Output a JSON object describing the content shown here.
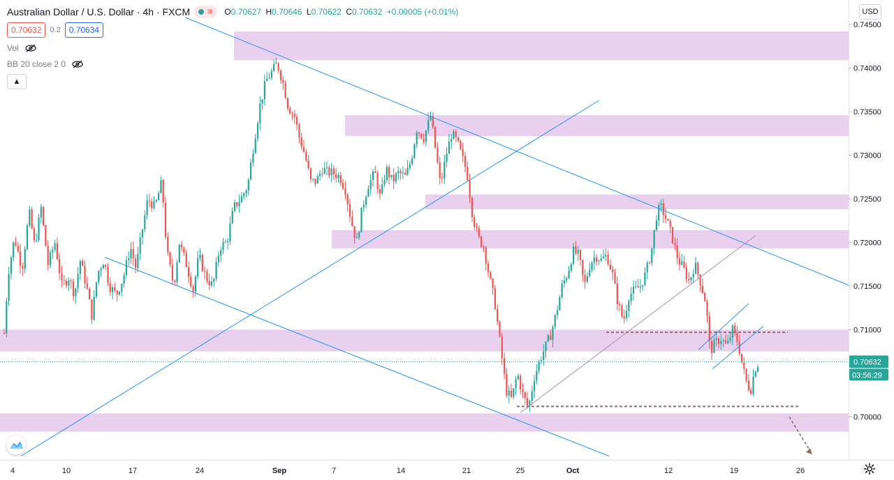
{
  "header": {
    "symbol_title": "Australian Dollar / U.S. Dollar · 4h · FXCM",
    "ohlc": {
      "open_label": "O",
      "open": "0.70627",
      "high_label": "H",
      "high": "0.70646",
      "low_label": "L",
      "low": "0.70622",
      "close_label": "C",
      "close": "0.70632",
      "change": "+0.00005 (+0.01%)"
    },
    "sell_price": "0.70632",
    "spread": "0.2",
    "buy_price": "0.70634",
    "indicators": [
      {
        "label": "Vol"
      },
      {
        "label": "BB 20 close 2 0"
      }
    ],
    "currency": "USD",
    "status_icon": "market-open-dot",
    "collapse_icon": "chevron-up-icon"
  },
  "colors": {
    "up": "#26a69a",
    "down": "#ef5350",
    "zone": "#e6c8ec",
    "trendline": "#2196f3",
    "level_dashed": "#8d6e63",
    "current_price": "#26a69a"
  },
  "chart_data": {
    "type": "candlestick",
    "timeframe": "4h",
    "y_axis": {
      "position": "right",
      "ylim": [
        0.6955,
        0.7465
      ],
      "ticks": [
        "0.74500",
        "0.74000",
        "0.73500",
        "0.73000",
        "0.72500",
        "0.72000",
        "0.71500",
        "0.71000",
        "0.70000"
      ]
    },
    "x_axis": {
      "ticks": [
        "4",
        "10",
        "17",
        "24",
        "Sep",
        "7",
        "14",
        "21",
        "25",
        "Oct",
        "12",
        "19",
        "26"
      ]
    },
    "current_price": "0.70632",
    "countdown": "03:56:29",
    "price_path": [
      [
        0,
        0.7145
      ],
      [
        8,
        0.708
      ],
      [
        15,
        0.7165
      ],
      [
        24,
        0.7205
      ],
      [
        35,
        0.717
      ],
      [
        45,
        0.7235
      ],
      [
        53,
        0.7195
      ],
      [
        62,
        0.724
      ],
      [
        72,
        0.7175
      ],
      [
        82,
        0.72
      ],
      [
        92,
        0.715
      ],
      [
        102,
        0.716
      ],
      [
        110,
        0.714
      ],
      [
        118,
        0.718
      ],
      [
        127,
        0.715
      ],
      [
        135,
        0.7115
      ],
      [
        143,
        0.7165
      ],
      [
        152,
        0.718
      ],
      [
        160,
        0.715
      ],
      [
        170,
        0.714
      ],
      [
        180,
        0.716
      ],
      [
        190,
        0.7195
      ],
      [
        198,
        0.717
      ],
      [
        206,
        0.721
      ],
      [
        215,
        0.725
      ],
      [
        225,
        0.724
      ],
      [
        235,
        0.727
      ],
      [
        242,
        0.719
      ],
      [
        252,
        0.715
      ],
      [
        260,
        0.72
      ],
      [
        270,
        0.7175
      ],
      [
        280,
        0.7145
      ],
      [
        288,
        0.7185
      ],
      [
        298,
        0.716
      ],
      [
        308,
        0.715
      ],
      [
        318,
        0.7195
      ],
      [
        328,
        0.72
      ],
      [
        338,
        0.724
      ],
      [
        348,
        0.725
      ],
      [
        358,
        0.7265
      ],
      [
        366,
        0.731
      ],
      [
        375,
        0.7355
      ],
      [
        384,
        0.7385
      ],
      [
        392,
        0.7395
      ],
      [
        400,
        0.7405
      ],
      [
        408,
        0.7385
      ],
      [
        416,
        0.7355
      ],
      [
        425,
        0.7345
      ],
      [
        432,
        0.732
      ],
      [
        440,
        0.73
      ],
      [
        448,
        0.727
      ],
      [
        456,
        0.727
      ],
      [
        465,
        0.7285
      ],
      [
        472,
        0.728
      ],
      [
        480,
        0.728
      ],
      [
        490,
        0.7275
      ],
      [
        498,
        0.726
      ],
      [
        506,
        0.7225
      ],
      [
        514,
        0.72
      ],
      [
        522,
        0.724
      ],
      [
        530,
        0.7265
      ],
      [
        540,
        0.728
      ],
      [
        548,
        0.725
      ],
      [
        556,
        0.7285
      ],
      [
        565,
        0.727
      ],
      [
        574,
        0.728
      ],
      [
        584,
        0.7275
      ],
      [
        592,
        0.7295
      ],
      [
        600,
        0.733
      ],
      [
        610,
        0.732
      ],
      [
        620,
        0.7345
      ],
      [
        628,
        0.73
      ],
      [
        634,
        0.7265
      ],
      [
        642,
        0.73
      ],
      [
        650,
        0.7325
      ],
      [
        658,
        0.7315
      ],
      [
        666,
        0.7295
      ],
      [
        672,
        0.728
      ],
      [
        680,
        0.723
      ],
      [
        688,
        0.7205
      ],
      [
        696,
        0.7195
      ],
      [
        704,
        0.716
      ],
      [
        712,
        0.713
      ],
      [
        720,
        0.708
      ],
      [
        728,
        0.703
      ],
      [
        736,
        0.702
      ],
      [
        744,
        0.705
      ],
      [
        752,
        0.7025
      ],
      [
        760,
        0.701
      ],
      [
        768,
        0.7045
      ],
      [
        776,
        0.7065
      ],
      [
        784,
        0.708
      ],
      [
        792,
        0.7095
      ],
      [
        800,
        0.712
      ],
      [
        808,
        0.715
      ],
      [
        816,
        0.7165
      ],
      [
        824,
        0.719
      ],
      [
        832,
        0.7185
      ],
      [
        840,
        0.715
      ],
      [
        848,
        0.7175
      ],
      [
        856,
        0.7185
      ],
      [
        864,
        0.718
      ],
      [
        872,
        0.7185
      ],
      [
        880,
        0.7165
      ],
      [
        888,
        0.713
      ],
      [
        896,
        0.711
      ],
      [
        904,
        0.714
      ],
      [
        912,
        0.7145
      ],
      [
        920,
        0.715
      ],
      [
        928,
        0.7165
      ],
      [
        936,
        0.719
      ],
      [
        944,
        0.7235
      ],
      [
        950,
        0.724
      ],
      [
        958,
        0.7225
      ],
      [
        966,
        0.7205
      ],
      [
        974,
        0.718
      ],
      [
        982,
        0.717
      ],
      [
        990,
        0.7155
      ],
      [
        998,
        0.7175
      ],
      [
        1006,
        0.7155
      ],
      [
        1014,
        0.713
      ],
      [
        1020,
        0.7075
      ],
      [
        1028,
        0.7085
      ],
      [
        1036,
        0.709
      ],
      [
        1044,
        0.708
      ],
      [
        1052,
        0.71
      ],
      [
        1060,
        0.7085
      ],
      [
        1066,
        0.706
      ],
      [
        1072,
        0.704
      ],
      [
        1078,
        0.703
      ],
      [
        1084,
        0.7055
      ],
      [
        1090,
        0.7063
      ]
    ],
    "zones": [
      {
        "x1": 335,
        "x2": 1215,
        "y_top": 0.7442,
        "y_bottom": 0.7409
      },
      {
        "x1": 494,
        "x2": 1215,
        "y_top": 0.7346,
        "y_bottom": 0.7322
      },
      {
        "x1": 609,
        "x2": 1215,
        "y_top": 0.7255,
        "y_bottom": 0.7238
      },
      {
        "x1": 475,
        "x2": 1215,
        "y_top": 0.7214,
        "y_bottom": 0.7193
      },
      {
        "x1": 0,
        "x2": 1215,
        "y_top": 0.71,
        "y_bottom": 0.7075
      },
      {
        "x1": 0,
        "x2": 1215,
        "y_top": 0.7004,
        "y_bottom": 0.6983
      }
    ],
    "trendlines": [
      {
        "x1": 265,
        "y1": 0.7458,
        "x2": 1215,
        "y2": 0.7151
      },
      {
        "x1": 30,
        "y1": 0.6955,
        "x2": 858,
        "y2": 0.7363
      },
      {
        "x1": 150,
        "y1": 0.7183,
        "x2": 872,
        "y2": 0.6955
      }
    ],
    "channel_lines": [
      {
        "x1": 745,
        "y1": 0.7005,
        "x2": 1082,
        "y2": 0.7208,
        "color": "#b48ab4"
      },
      {
        "x1": 1000,
        "y1": 0.7077,
        "x2": 1072,
        "y2": 0.713,
        "color": "#2196f3"
      },
      {
        "x1": 1020,
        "y1": 0.7055,
        "x2": 1093,
        "y2": 0.7104,
        "color": "#2196f3"
      }
    ],
    "dashed_levels": [
      {
        "x1": 868,
        "x2": 1128,
        "y": 0.7097
      },
      {
        "x1": 740,
        "x2": 1146,
        "y": 0.7012
      }
    ],
    "projection_arrow": {
      "x1": 1130,
      "y1": 0.7,
      "x2": 1163,
      "y2": 0.6957
    }
  }
}
